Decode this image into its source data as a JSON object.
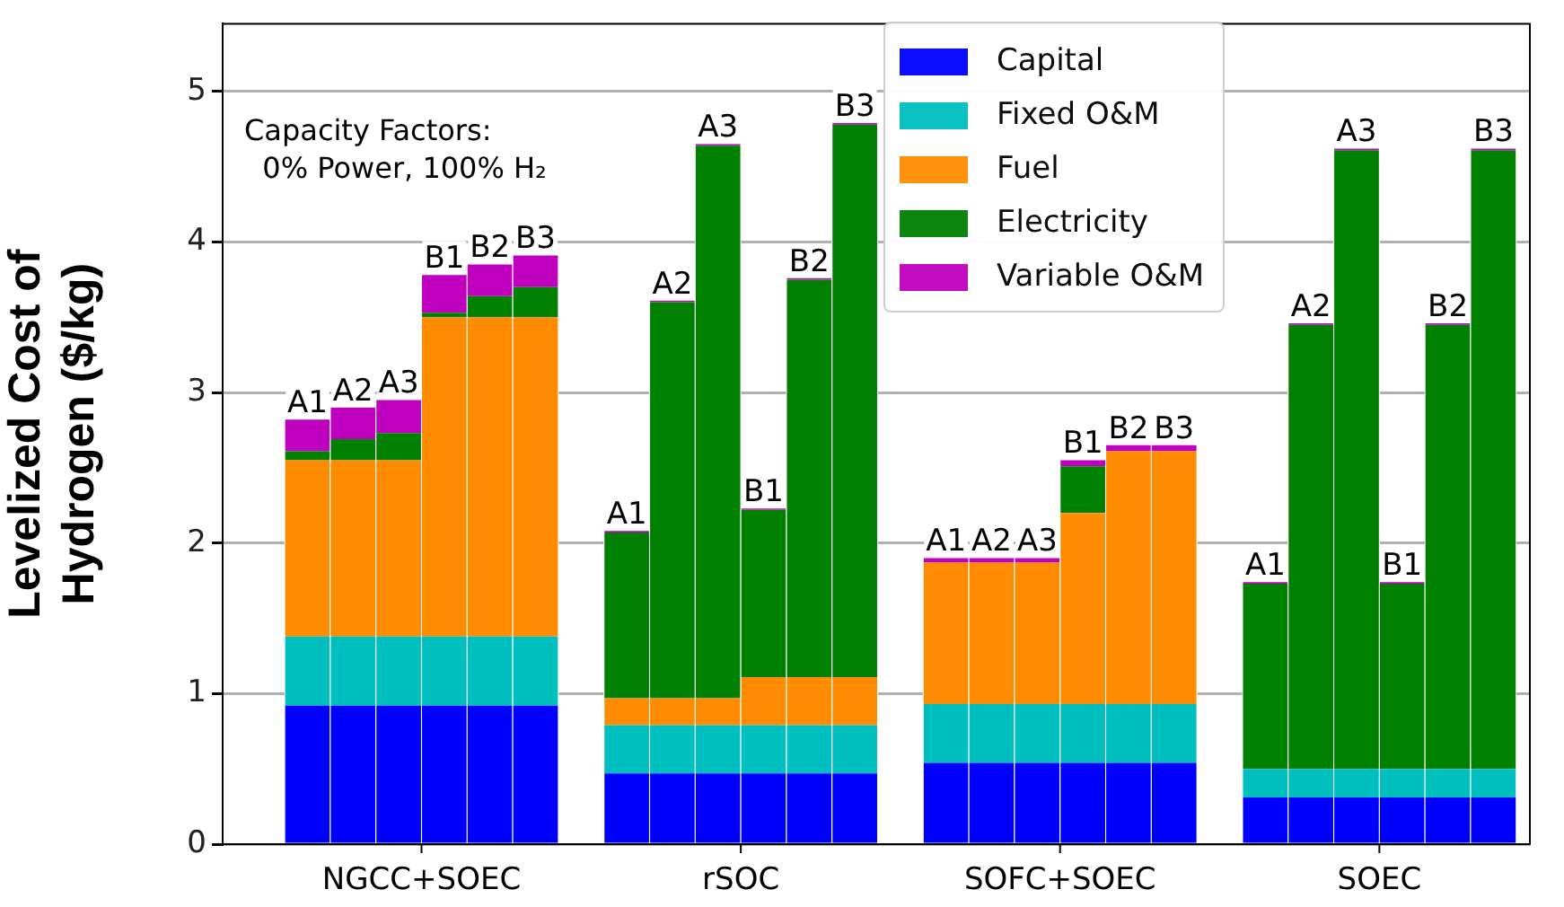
{
  "chart_data": {
    "type": "bar",
    "stacked": true,
    "categories": [
      "A1",
      "A2",
      "A3",
      "B1",
      "B2",
      "B3",
      null,
      "A1",
      "A2",
      "A3",
      "B1",
      "B2",
      "B3",
      null,
      "A1",
      "A2",
      "A3",
      "B1",
      "B2",
      "B3",
      null,
      "A1",
      "A2",
      "A3",
      "B1",
      "B2",
      "B3"
    ],
    "ylabel": "Levelized Cost of\nHydrogen ($/kg)",
    "ylim": [
      0,
      5.45
    ],
    "yticks": [
      0,
      1,
      2,
      3,
      4,
      5
    ],
    "grid": "y",
    "legend": "top",
    "annotations": [
      "Capacity Factors:\n  0% Power, 100% H₂",
      "NGCC+SOEC",
      "rSOC",
      "SOFC+SOEC",
      "SOEC"
    ],
    "series": [
      {
        "name": "Capital",
        "color": "#0000ff",
        "values": [
          0.92,
          0.92,
          0.92,
          0.92,
          0.92,
          0.92,
          null,
          0.47,
          0.47,
          0.47,
          0.47,
          0.47,
          0.47,
          null,
          0.54,
          0.54,
          0.54,
          0.54,
          0.54,
          0.54,
          null,
          0.31,
          0.31,
          0.31,
          0.31,
          0.31,
          0.31
        ]
      },
      {
        "name": "Fixed O&M",
        "color": "#00bfbf",
        "values": [
          0.46,
          0.46,
          0.46,
          0.46,
          0.46,
          0.46,
          null,
          0.32,
          0.32,
          0.32,
          0.32,
          0.32,
          0.32,
          null,
          0.39,
          0.39,
          0.39,
          0.39,
          0.39,
          0.39,
          null,
          0.19,
          0.19,
          0.19,
          0.19,
          0.19,
          0.19
        ]
      },
      {
        "name": "Fuel",
        "color": "#ff8c00",
        "values": [
          1.17,
          1.17,
          1.17,
          2.12,
          2.12,
          2.12,
          null,
          0.18,
          0.18,
          0.18,
          0.32,
          0.32,
          0.32,
          null,
          0.94,
          0.94,
          0.94,
          1.27,
          1.68,
          1.68,
          null,
          0,
          0,
          0,
          0,
          0,
          0
        ]
      },
      {
        "name": "Electricity",
        "color": "#008000",
        "values": [
          0.06,
          0.14,
          0.18,
          0.03,
          0.14,
          0.2,
          null,
          1.1,
          2.63,
          3.67,
          1.11,
          2.64,
          3.67,
          null,
          0,
          0,
          0,
          0.31,
          0,
          0,
          null,
          1.23,
          2.95,
          4.11,
          1.23,
          2.95,
          4.11
        ]
      },
      {
        "name": "Variable O&M",
        "color": "#bf00bf",
        "values": [
          0.21,
          0.21,
          0.22,
          0.25,
          0.21,
          0.21,
          null,
          0.01,
          0.01,
          0.01,
          0.01,
          0.01,
          0.01,
          null,
          0.03,
          0.03,
          0.03,
          0.04,
          0.04,
          0.04,
          null,
          0.01,
          0.01,
          0.01,
          0.01,
          0.01,
          0.01
        ]
      }
    ]
  }
}
